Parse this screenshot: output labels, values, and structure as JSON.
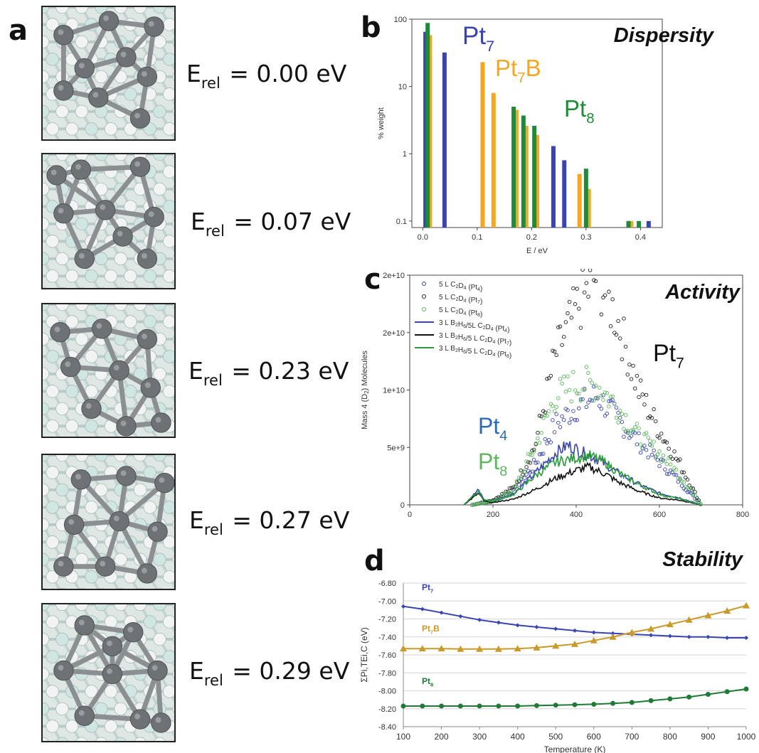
{
  "panel_letters": {
    "a": "a",
    "b": "b",
    "c": "c",
    "d": "d"
  },
  "structures": [
    {
      "label_main": "E",
      "label_sub": "rel",
      "label_value": "= 0.00 eV"
    },
    {
      "label_main": "E",
      "label_sub": "rel",
      "label_value": "= 0.07 eV"
    },
    {
      "label_main": "E",
      "label_sub": "rel",
      "label_value": "= 0.23 eV"
    },
    {
      "label_main": "E",
      "label_sub": "rel",
      "label_value": "= 0.27 eV"
    },
    {
      "label_main": "E",
      "label_sub": "rel",
      "label_value": "= 0.29 eV"
    }
  ],
  "colors": {
    "pt7": "#3a44b0",
    "pt7b": "#f5a623",
    "pt8": "#1e8a3a",
    "pt4": "#3a44b0",
    "pt4_label": "#2a6cc0",
    "pt8_label": "#5cb85c",
    "pt7b_d": "#c79a2a",
    "pt8_d": "#1e7a35",
    "pt7_d": "#3a44b0"
  },
  "chart_data": [
    {
      "panel": "b",
      "type": "bar",
      "title": "Dispersity",
      "xlabel": "E / eV",
      "ylabel": "% weight",
      "yscale": "log",
      "xlim": [
        -0.02,
        0.44
      ],
      "ylim": [
        0.08,
        100
      ],
      "xticks": [
        "0.0",
        "0.1",
        "0.2",
        "0.3",
        "0.4"
      ],
      "yticks": [
        "0.1",
        "1",
        "10",
        "100"
      ],
      "annotations": [
        {
          "text": "Pt",
          "sub": "7",
          "series": "Pt7"
        },
        {
          "text": "Pt",
          "sub": "7",
          "after": "B",
          "series": "Pt7B"
        },
        {
          "text": "Pt",
          "sub": "8",
          "series": "Pt8"
        }
      ],
      "series": [
        {
          "name": "Pt7",
          "color": "#3a44b0",
          "x": [
            0.005,
            0.04,
            0.24,
            0.26,
            0.415
          ],
          "values": [
            65,
            32,
            1.3,
            0.8,
            0.1
          ]
        },
        {
          "name": "Pt7B",
          "color": "#f5a623",
          "x": [
            0.013,
            0.11,
            0.13,
            0.172,
            0.19,
            0.21,
            0.288,
            0.305,
            0.383
          ],
          "values": [
            58,
            23,
            8,
            4.5,
            2.6,
            1.9,
            0.5,
            0.3,
            0.1
          ]
        },
        {
          "name": "Pt8",
          "color": "#1e8a3a",
          "x": [
            0.009,
            0.167,
            0.185,
            0.205,
            0.3,
            0.378,
            0.397
          ],
          "values": [
            88,
            5,
            3.7,
            2.6,
            0.6,
            0.1,
            0.1
          ]
        }
      ]
    },
    {
      "panel": "c",
      "type": "scatter",
      "title": "Activity",
      "xlabel": "",
      "ylabel": "Mass 4 (D2) Molecules",
      "ylabel_parts": {
        "before": "Mass 4 (D",
        "sub": "2",
        "after": ") Molecules"
      },
      "xlim": [
        0,
        800
      ],
      "ylim": [
        0,
        20000000000
      ],
      "xticks": [
        "0",
        "200",
        "400",
        "600",
        "800"
      ],
      "yticks": [
        "0",
        "5e+9",
        "1e+10",
        "2e+10",
        "2e+10"
      ],
      "legend": [
        {
          "label": "5 L C2D4 (Pt4)",
          "kind": "marker",
          "color": "#3a44b0"
        },
        {
          "label": "5 L C2D4 (Pt7)",
          "kind": "marker",
          "color": "#222222"
        },
        {
          "label": "5 L C2D4 (Pt8)",
          "kind": "marker",
          "color": "#5cb85c"
        },
        {
          "label": "3 L B2H6/5L C2D4 (Pt4)",
          "kind": "line",
          "color": "#3a44b0"
        },
        {
          "label": "3 L B2H6/5 L C2D4 (Pt7)",
          "kind": "line",
          "color": "#111111"
        },
        {
          "label": "3 L B2H6/5 L C2D4 (Pt8)",
          "kind": "line",
          "color": "#2a9a3a"
        }
      ],
      "annotations": [
        {
          "text": "Pt",
          "sub": "7",
          "color": "#111111"
        },
        {
          "text": "Pt",
          "sub": "4",
          "color": "#2a6cc0"
        },
        {
          "text": "Pt",
          "sub": "8",
          "color": "#5cb85c"
        }
      ],
      "series": [
        {
          "name": "5 L C2D4 (Pt4)",
          "kind": "scatter",
          "color": "#3a44b0",
          "x": [
            150,
            200,
            250,
            300,
            350,
            400,
            450,
            500,
            550,
            600,
            650,
            700
          ],
          "values": [
            0,
            300000000.0,
            1200000000.0,
            3500000000.0,
            7000000000.0,
            8500000000.0,
            9500000000.0,
            7500000000.0,
            5500000000.0,
            3800000000.0,
            2000000000.0,
            0
          ]
        },
        {
          "name": "5 L C2D4 (Pt7)",
          "kind": "scatter",
          "color": "#222222",
          "x": [
            150,
            200,
            250,
            300,
            350,
            400,
            450,
            500,
            550,
            600,
            650,
            700
          ],
          "values": [
            0,
            400000000.0,
            1500000000.0,
            5000000000.0,
            13000000000.0,
            17000000000.0,
            20000000000.0,
            16000000000.0,
            10000000000.0,
            6500000000.0,
            3500000000.0,
            0
          ]
        },
        {
          "name": "5 L C2D4 (Pt8)",
          "kind": "scatter",
          "color": "#5cb85c",
          "x": [
            150,
            200,
            250,
            300,
            350,
            400,
            450,
            500,
            550,
            600,
            650,
            700
          ],
          "values": [
            0,
            300000000.0,
            1300000000.0,
            5000000000.0,
            9500000000.0,
            10500000000.0,
            10500000000.0,
            8500000000.0,
            6000000000.0,
            4500000000.0,
            2500000000.0,
            0
          ]
        },
        {
          "name": "3 L B2H6/5L C2D4 (Pt4)",
          "kind": "line",
          "color": "#3a44b0",
          "x": [
            130,
            165,
            180,
            200,
            250,
            300,
            350,
            380,
            420,
            450,
            500,
            550,
            600,
            650,
            700
          ],
          "values": [
            0,
            1300000000.0,
            400000000.0,
            300000000.0,
            1000000000.0,
            2700000000.0,
            4500000000.0,
            5200000000.0,
            4500000000.0,
            4000000000.0,
            2800000000.0,
            1800000000.0,
            1000000000.0,
            600000000.0,
            0
          ]
        },
        {
          "name": "3 L B2H6/5 L C2D4 (Pt7)",
          "kind": "line",
          "color": "#111111",
          "x": [
            130,
            165,
            180,
            200,
            250,
            300,
            350,
            400,
            430,
            470,
            500,
            550,
            600,
            650,
            700
          ],
          "values": [
            0,
            1000000000.0,
            300000000.0,
            200000000.0,
            500000000.0,
            1300000000.0,
            2300000000.0,
            3000000000.0,
            3300000000.0,
            2700000000.0,
            2000000000.0,
            1200000000.0,
            600000000.0,
            400000000.0,
            0
          ]
        },
        {
          "name": "3 L B2H6/5 L C2D4 (Pt8)",
          "kind": "line",
          "color": "#2a9a3a",
          "x": [
            130,
            165,
            180,
            200,
            250,
            300,
            350,
            400,
            430,
            470,
            500,
            550,
            600,
            650,
            700
          ],
          "values": [
            0,
            1200000000.0,
            400000000.0,
            300000000.0,
            900000000.0,
            2500000000.0,
            3700000000.0,
            4100000000.0,
            4300000000.0,
            3700000000.0,
            2800000000.0,
            1800000000.0,
            900000000.0,
            500000000.0,
            0
          ]
        }
      ]
    },
    {
      "panel": "d",
      "type": "line",
      "title": "Stability",
      "xlabel": "Temperature (K)",
      "ylabel": "ΣPi,TEi,C (eV)",
      "xlim": [
        100,
        1000
      ],
      "ylim": [
        -8.4,
        -6.8
      ],
      "xticks": [
        "100",
        "200",
        "300",
        "400",
        "500",
        "600",
        "700",
        "800",
        "900",
        "1000"
      ],
      "yticks": [
        "-6.80",
        "-7.00",
        "-7.20",
        "-7.40",
        "-7.60",
        "-7.80",
        "-8.00",
        "-8.20",
        "-8.40"
      ],
      "annotations": [
        {
          "text": "Pt",
          "sub": "7",
          "after": "",
          "series": "Pt7"
        },
        {
          "text": "Pt",
          "sub": "7",
          "after": "B",
          "series": "Pt7B"
        },
        {
          "text": "Pt",
          "sub": "8",
          "after": "",
          "series": "Pt8"
        }
      ],
      "series": [
        {
          "name": "Pt7",
          "color": "#3a44b0",
          "marker": "diamond",
          "x": [
            100,
            150,
            200,
            250,
            300,
            350,
            400,
            450,
            500,
            550,
            600,
            650,
            700,
            750,
            800,
            850,
            900,
            950,
            1000
          ],
          "values": [
            -7.06,
            -7.09,
            -7.13,
            -7.17,
            -7.21,
            -7.24,
            -7.27,
            -7.29,
            -7.31,
            -7.33,
            -7.35,
            -7.36,
            -7.37,
            -7.38,
            -7.39,
            -7.4,
            -7.4,
            -7.41,
            -7.41
          ]
        },
        {
          "name": "Pt7B",
          "color": "#c79a2a",
          "marker": "triangle",
          "x": [
            100,
            150,
            200,
            250,
            300,
            350,
            400,
            450,
            500,
            550,
            600,
            650,
            700,
            750,
            800,
            850,
            900,
            950,
            1000
          ],
          "values": [
            -7.53,
            -7.53,
            -7.53,
            -7.535,
            -7.535,
            -7.535,
            -7.53,
            -7.52,
            -7.5,
            -7.48,
            -7.44,
            -7.4,
            -7.35,
            -7.31,
            -7.26,
            -7.21,
            -7.16,
            -7.11,
            -7.05
          ]
        },
        {
          "name": "Pt8",
          "color": "#1e7a35",
          "marker": "circle",
          "x": [
            100,
            150,
            200,
            250,
            300,
            350,
            400,
            450,
            500,
            550,
            600,
            650,
            700,
            750,
            800,
            850,
            900,
            950,
            1000
          ],
          "values": [
            -8.17,
            -8.17,
            -8.17,
            -8.17,
            -8.17,
            -8.17,
            -8.17,
            -8.165,
            -8.16,
            -8.155,
            -8.15,
            -8.14,
            -8.13,
            -8.11,
            -8.09,
            -8.07,
            -8.04,
            -8.01,
            -7.98
          ]
        }
      ]
    }
  ]
}
